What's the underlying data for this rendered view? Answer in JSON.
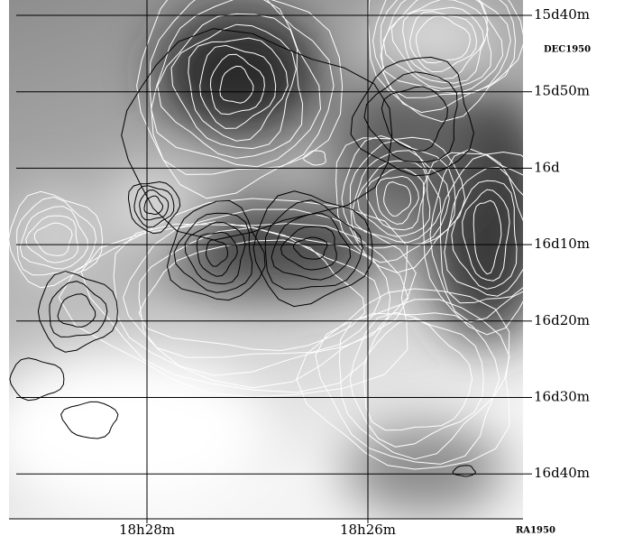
{
  "map": {
    "dec_labels": [
      "15d40m",
      "15d50m",
      "16d",
      "16d10m",
      "16d20m",
      "16d30m",
      "16d40m"
    ],
    "dec_title": "DEC1950",
    "ra_labels": [
      "18h28m",
      "18h26m"
    ],
    "ra_title": "RA1950"
  }
}
